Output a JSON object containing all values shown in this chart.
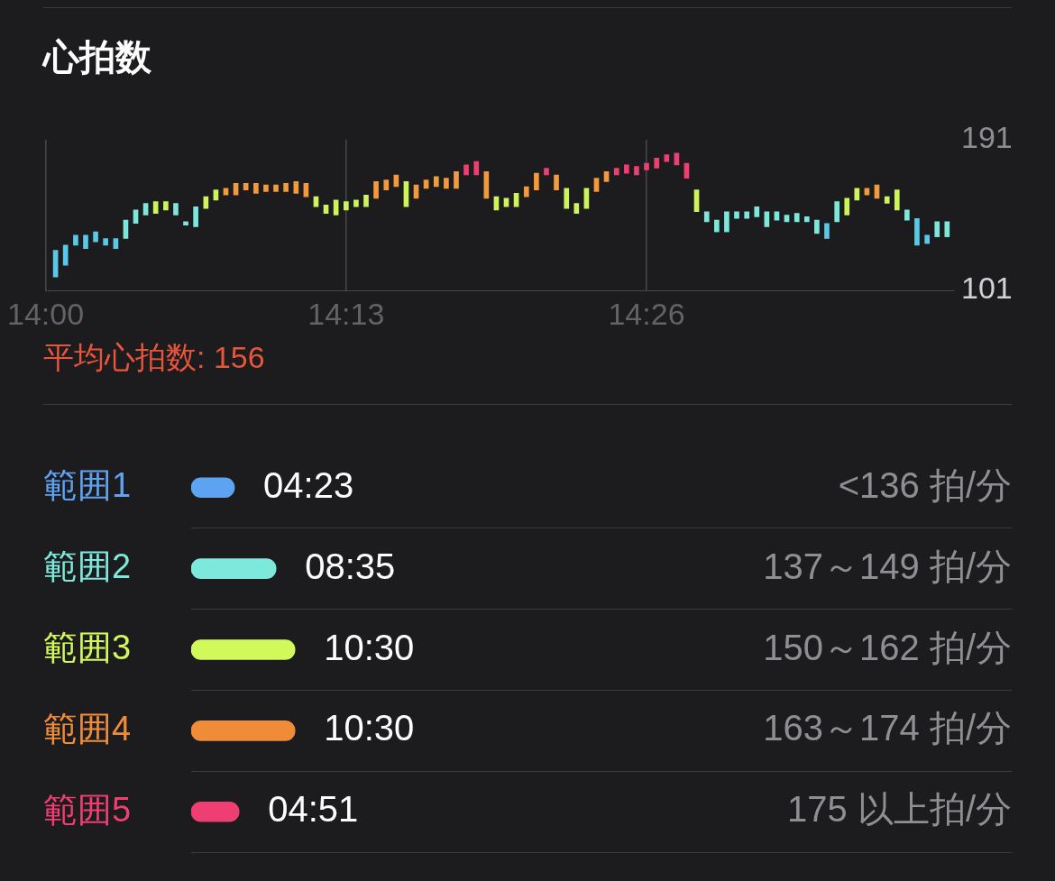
{
  "chart_data": [
    {
      "type": "bar",
      "title": "心拍数",
      "x": [
        14.0072,
        14.0144,
        14.0217,
        14.0289,
        14.0361,
        14.0433,
        14.0506,
        14.0578,
        14.065,
        14.0722,
        14.0794,
        14.0867,
        14.0939,
        14.1011,
        14.1083,
        14.1156,
        14.1228,
        14.13,
        14.1372,
        14.1444,
        14.1517,
        14.1589,
        14.1661,
        14.1733,
        14.1806,
        14.1878,
        14.195,
        14.2022,
        14.2094,
        14.2167,
        14.2239,
        14.2311,
        14.2383,
        14.2456,
        14.2528,
        14.26,
        14.2672,
        14.2744,
        14.2817,
        14.2889,
        14.2961,
        14.3033,
        14.3106,
        14.3178,
        14.325,
        14.3322,
        14.3394,
        14.3467,
        14.3539,
        14.3611,
        14.3683,
        14.3756,
        14.3828,
        14.39,
        14.3972,
        14.4044,
        14.4117,
        14.4189,
        14.4261,
        14.4333,
        14.4406,
        14.4478,
        14.455,
        14.4622,
        14.4694,
        14.4767,
        14.4839,
        14.4911,
        14.4983,
        14.5056,
        14.5128,
        14.52,
        14.5272,
        14.5344,
        14.5417,
        14.5489,
        14.5561,
        14.5633,
        14.5706,
        14.5778,
        14.585,
        14.5922,
        14.5994,
        14.6067,
        14.6139,
        14.6211,
        14.6283,
        14.6356,
        14.6428,
        14.65
      ],
      "base": [
        109,
        116,
        128,
        126,
        130,
        128,
        126,
        132,
        141,
        146,
        147,
        149,
        146,
        140,
        139,
        150,
        155,
        158,
        158,
        161,
        159,
        160,
        160,
        160,
        159,
        157,
        151,
        147,
        146,
        149,
        151,
        151,
        156,
        161,
        163,
        151,
        156,
        162,
        163,
        162,
        162,
        170,
        170,
        156,
        149,
        151,
        151,
        157,
        161,
        170,
        161,
        150,
        147,
        150,
        160,
        166,
        170,
        171,
        170,
        173,
        174,
        178,
        176,
        168,
        148,
        142,
        136,
        136,
        144,
        144,
        145,
        139,
        143,
        142,
        142,
        142,
        135,
        132,
        142,
        146,
        155,
        158,
        156,
        153,
        149,
        143,
        128,
        129,
        133,
        133
      ],
      "values": [
        16,
        12,
        6,
        8,
        6,
        4,
        6,
        11,
        8,
        7,
        7,
        5,
        7,
        2,
        12,
        7,
        6,
        4,
        7,
        4,
        6,
        4,
        4,
        5,
        7,
        8,
        6,
        5,
        9,
        5,
        4,
        7,
        10,
        6,
        7,
        15,
        8,
        5,
        6,
        6,
        10,
        6,
        8,
        16,
        8,
        5,
        8,
        6,
        10,
        4,
        9,
        12,
        6,
        12,
        8,
        6,
        4,
        5,
        5,
        4,
        6,
        4,
        7,
        9,
        13,
        6,
        7,
        12,
        4,
        4,
        6,
        9,
        5,
        4,
        5,
        3,
        8,
        9,
        12,
        10,
        7,
        4,
        8,
        4,
        12,
        6,
        16,
        5,
        9,
        9
      ],
      "colors": [
        "#5ac8e6",
        "#5ac8e6",
        "#5ac8e6",
        "#5ac8e6",
        "#5ac8e6",
        "#5ac8e6",
        "#5ac8e6",
        "#7ce8dc",
        "#7ce8dc",
        "#7ce8dc",
        "#cdf45a",
        "#cdf45a",
        "#7ce8dc",
        "#7ce8dc",
        "#7ce8dc",
        "#cdf45a",
        "#cdf45a",
        "#f29a3c",
        "#f29a3c",
        "#f29a3c",
        "#f29a3c",
        "#f29a3c",
        "#f29a3c",
        "#f29a3c",
        "#f29a3c",
        "#f29a3c",
        "#cdf45a",
        "#cdf45a",
        "#cdf45a",
        "#cdf45a",
        "#cdf45a",
        "#cdf45a",
        "#f29a3c",
        "#f29a3c",
        "#f29a3c",
        "#cdf45a",
        "#f29a3c",
        "#f29a3c",
        "#f29a3c",
        "#f29a3c",
        "#f29a3c",
        "#ee4070",
        "#ee4070",
        "#f29a3c",
        "#cdf45a",
        "#cdf45a",
        "#cdf45a",
        "#f29a3c",
        "#f29a3c",
        "#ee4070",
        "#f29a3c",
        "#cdf45a",
        "#cdf45a",
        "#cdf45a",
        "#f29a3c",
        "#f29a3c",
        "#ee4070",
        "#ee4070",
        "#ee4070",
        "#ee4070",
        "#ee4070",
        "#ee4070",
        "#ee4070",
        "#ee4070",
        "#cdf45a",
        "#7ce8dc",
        "#7ce8dc",
        "#7ce8dc",
        "#7ce8dc",
        "#7ce8dc",
        "#7ce8dc",
        "#7ce8dc",
        "#7ce8dc",
        "#7ce8dc",
        "#7ce8dc",
        "#7ce8dc",
        "#7ce8dc",
        "#5ac8e6",
        "#7ce8dc",
        "#cdf45a",
        "#cdf45a",
        "#f29a3c",
        "#f29a3c",
        "#cdf45a",
        "#cdf45a",
        "#7ce8dc",
        "#5ac8e6",
        "#5ac8e6",
        "#7ce8dc",
        "#7ce8dc"
      ],
      "xlim": [
        14,
        14.655
      ],
      "xticks": [
        {
          "value": 14,
          "label": "14:00"
        },
        {
          "value": 14.2167,
          "label": "14:13"
        },
        {
          "value": 14.4333,
          "label": "14:26"
        }
      ],
      "ylim": [
        101,
        191
      ],
      "yticks": [
        101,
        191
      ],
      "grid": "x",
      "annotations": [
        "平均心拍数: 156"
      ]
    },
    {
      "type": "bar",
      "orientation": "horizontal",
      "categories": [
        "範囲1",
        "範囲2",
        "範囲3",
        "範囲4",
        "範囲5"
      ],
      "values": [
        263,
        515,
        630,
        630,
        291
      ],
      "value_labels": [
        "04:23",
        "08:35",
        "10:30",
        "10:30",
        "04:51"
      ],
      "colors": [
        "#5ea3f2",
        "#7de8dc",
        "#d2f95a",
        "#f08c38",
        "#ee3e72"
      ],
      "grid": "y",
      "annotations": [
        "<136 拍/分",
        "137～149 拍/分",
        "150～162 拍/分",
        "163～174 拍/分",
        "175 以上拍/分"
      ]
    }
  ]
}
